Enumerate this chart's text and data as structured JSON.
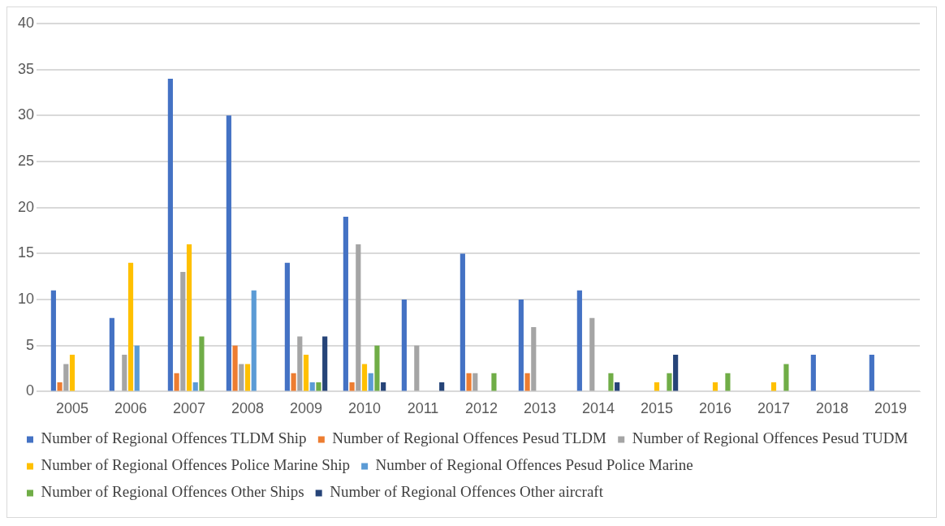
{
  "chart_data": {
    "type": "bar",
    "categories": [
      "2005",
      "2006",
      "2007",
      "2008",
      "2009",
      "2010",
      "2011",
      "2012",
      "2013",
      "2014",
      "2015",
      "2016",
      "2017",
      "2018",
      "2019"
    ],
    "series": [
      {
        "name": "Number of Regional Offences TLDM Ship",
        "color": "#4472c4",
        "values": [
          11,
          8,
          34,
          30,
          14,
          19,
          10,
          15,
          10,
          11,
          0,
          0,
          0,
          4,
          4
        ]
      },
      {
        "name": "Number of Regional Offences Pesud TLDM",
        "color": "#ed7d31",
        "values": [
          1,
          0,
          2,
          5,
          2,
          1,
          0,
          2,
          2,
          0,
          0,
          0,
          0,
          0,
          0
        ]
      },
      {
        "name": "Number of Regional Offences Pesud TUDM",
        "color": "#a5a5a5",
        "values": [
          3,
          4,
          13,
          3,
          6,
          16,
          5,
          2,
          7,
          8,
          0,
          0,
          0,
          0,
          0
        ]
      },
      {
        "name": "Number of Regional Offences Police Marine Ship",
        "color": "#ffc000",
        "values": [
          4,
          14,
          16,
          3,
          4,
          3,
          0,
          0,
          0,
          0,
          1,
          1,
          1,
          0,
          0
        ]
      },
      {
        "name": "Number of Regional Offences Pesud Police Marine",
        "color": "#5b9bd5",
        "values": [
          0,
          5,
          1,
          11,
          1,
          2,
          0,
          0,
          0,
          0,
          0,
          0,
          0,
          0,
          0
        ]
      },
      {
        "name": "Number of Regional Offences Other Ships",
        "color": "#70ad47",
        "values": [
          0,
          0,
          6,
          0,
          1,
          5,
          0,
          2,
          0,
          2,
          2,
          2,
          3,
          0,
          0
        ]
      },
      {
        "name": "Number of Regional Offences Other aircraft",
        "color": "#264478",
        "values": [
          0,
          0,
          0,
          0,
          6,
          1,
          1,
          0,
          0,
          1,
          4,
          0,
          0,
          0,
          0
        ]
      }
    ],
    "ylim": [
      0,
      40
    ],
    "yticks": [
      0,
      5,
      10,
      15,
      20,
      25,
      30,
      35,
      40
    ],
    "grid": "y",
    "legend": "bottom"
  }
}
